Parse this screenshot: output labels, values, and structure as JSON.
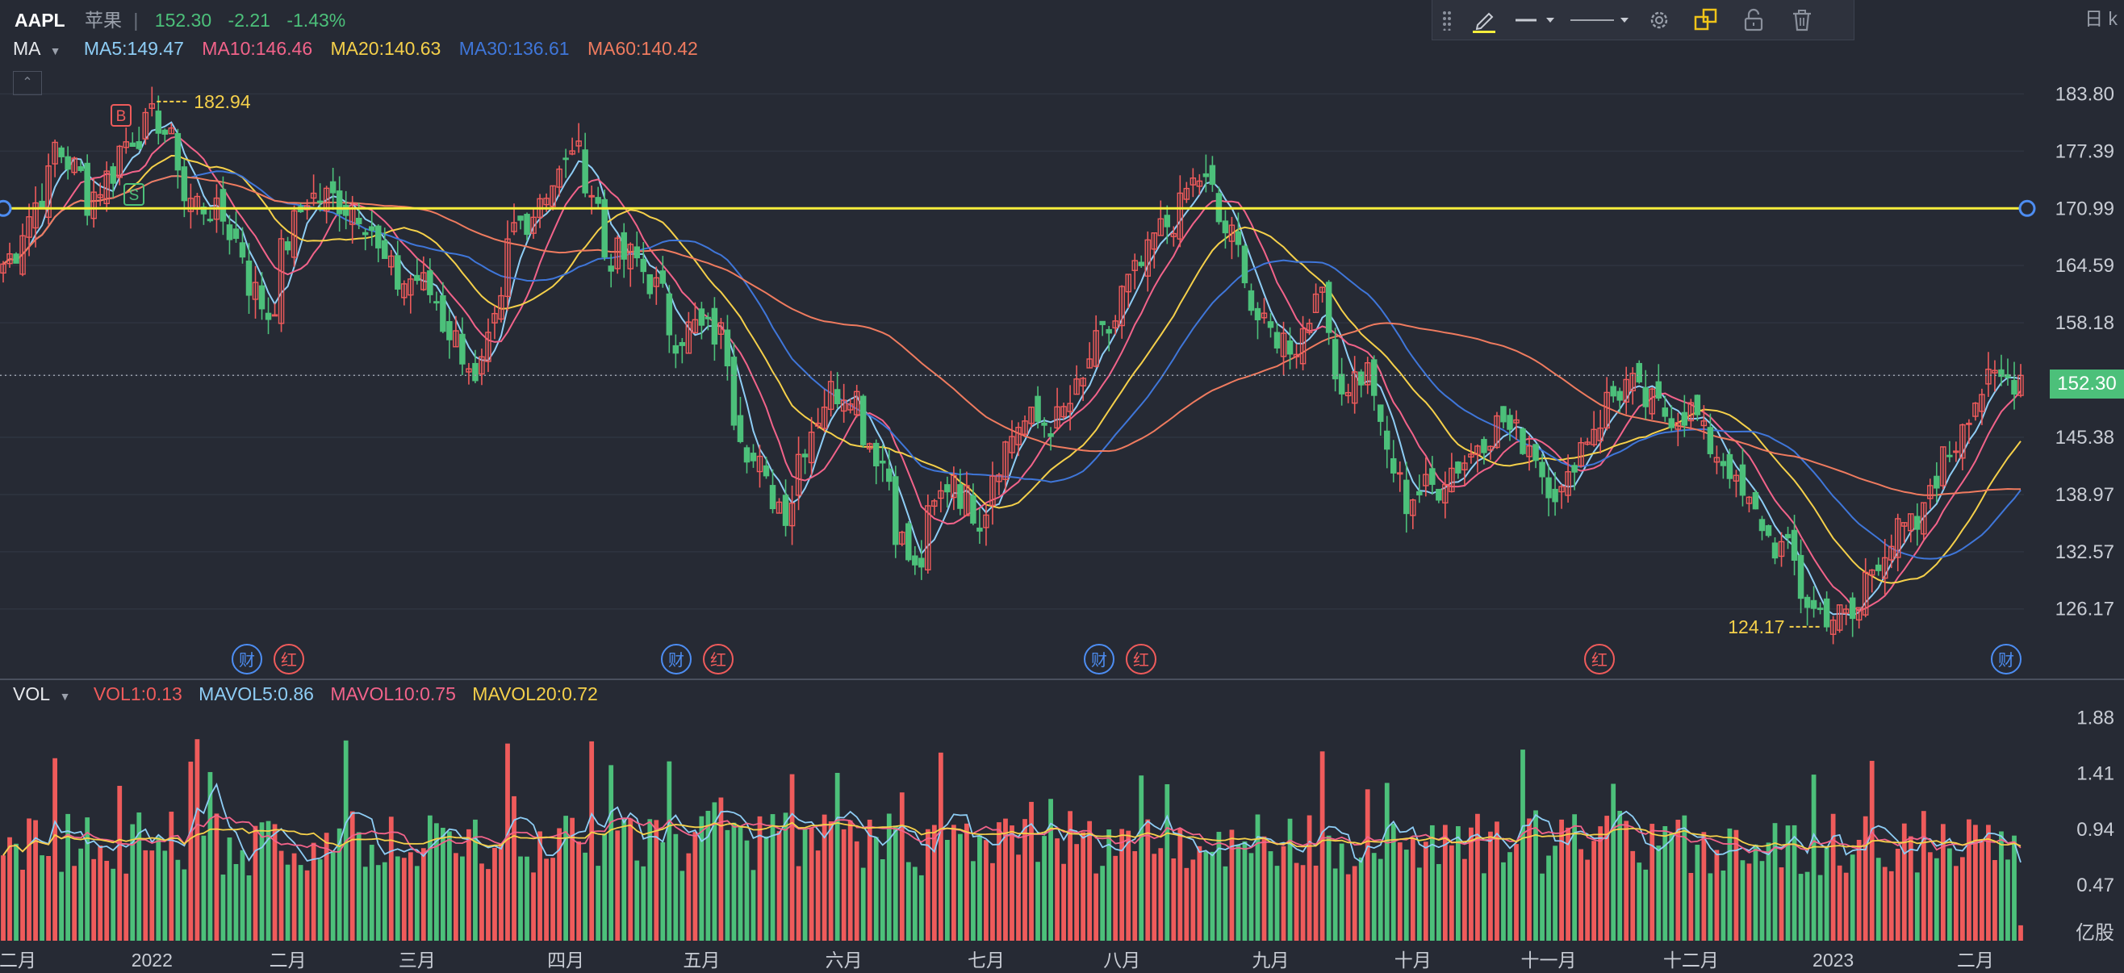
{
  "header": {
    "symbol": "AAPL",
    "name": "苹果",
    "separator": "|",
    "price": "152.30",
    "change": "-2.21",
    "change_pct": "-1.43%",
    "period": "日 k",
    "price_tag": "152.30",
    "collapse_icon": "chevron-up-icon"
  },
  "ma_legend": {
    "label": "MA",
    "items": [
      {
        "text": "MA5:149.47",
        "color": "#8ecdf5"
      },
      {
        "text": "MA10:146.46",
        "color": "#f2638a"
      },
      {
        "text": "MA20:140.63",
        "color": "#f5d04a"
      },
      {
        "text": "MA30:136.61",
        "color": "#3f76d9"
      },
      {
        "text": "MA60:140.42",
        "color": "#ef7b5f"
      }
    ]
  },
  "vol_legend": {
    "label": "VOL",
    "items": [
      {
        "text": "VOL1:0.13",
        "color": "#ef5b5b"
      },
      {
        "text": "MAVOL5:0.86",
        "color": "#8ecdf5"
      },
      {
        "text": "MAVOL10:0.75",
        "color": "#f2638a"
      },
      {
        "text": "MAVOL20:0.72",
        "color": "#f5d04a"
      }
    ]
  },
  "toolbar": {
    "items": [
      "drag-handle-icon",
      "pencil-icon",
      "line-style-icon",
      "line-width-icon",
      "gear-icon",
      "layers-icon",
      "lock-icon",
      "trash-icon"
    ]
  },
  "colors": {
    "up": "#ef5b5b",
    "down": "#4cc07a",
    "background": "#262a34",
    "grid": "#2f3440",
    "hline": "#f6ee3c"
  },
  "chart_data": [
    {
      "type": "candlestick",
      "title": "AAPL",
      "y_ticks": [
        "183.80",
        "177.39",
        "170.99",
        "164.59",
        "158.18",
        "152.30",
        "145.38",
        "138.97",
        "132.57",
        "126.17"
      ],
      "ylim": [
        121.0,
        186.0
      ],
      "x_ticks": [
        "二月",
        "2022",
        "二月",
        "三月",
        "四月",
        "五月",
        "六月",
        "七月",
        "八月",
        "九月",
        "十月",
        "十一月",
        "十二月",
        "2023",
        "二月"
      ],
      "horizontal_line": 170.99,
      "current_price": 152.3,
      "annotations": {
        "high": "182.94",
        "low": "124.17",
        "buy_marker": "B",
        "sell_marker": "S",
        "event_markers": [
          {
            "month": "二月",
            "labels": [
              "财",
              "红"
            ]
          },
          {
            "month": "五月",
            "labels": [
              "财",
              "红"
            ]
          },
          {
            "month": "八月",
            "labels": [
              "财",
              "红"
            ]
          },
          {
            "month": "十一月",
            "labels": [
              "红"
            ]
          },
          {
            "month": "二月",
            "labels": [
              "财"
            ]
          }
        ]
      },
      "series": [
        {
          "name": "MA5",
          "value": 149.47
        },
        {
          "name": "MA10",
          "value": 146.46
        },
        {
          "name": "MA20",
          "value": 140.63
        },
        {
          "name": "MA30",
          "value": 136.61
        },
        {
          "name": "MA60",
          "value": 140.42
        }
      ],
      "close_keypoints": [
        [
          "2021-12-01",
          164.8
        ],
        [
          "2021-12-06",
          169.0
        ],
        [
          "2021-12-13",
          178.0
        ],
        [
          "2021-12-20",
          172.0
        ],
        [
          "2021-12-29",
          179.3
        ],
        [
          "2022-01-04",
          181.0
        ],
        [
          "2022-01-10",
          172.2
        ],
        [
          "2022-01-18",
          169.8
        ],
        [
          "2022-01-27",
          159.2
        ],
        [
          "2022-02-04",
          172.4
        ],
        [
          "2022-02-10",
          172.1
        ],
        [
          "2022-02-16",
          171.0
        ],
        [
          "2022-02-24",
          162.7
        ],
        [
          "2022-03-01",
          163.2
        ],
        [
          "2022-03-08",
          157.4
        ],
        [
          "2022-03-14",
          150.6
        ],
        [
          "2022-03-22",
          168.8
        ],
        [
          "2022-03-31",
          174.6
        ],
        [
          "2022-04-04",
          178.4
        ],
        [
          "2022-04-11",
          165.8
        ],
        [
          "2022-04-18",
          165.1
        ],
        [
          "2022-04-26",
          156.8
        ],
        [
          "2022-04-29",
          157.7
        ],
        [
          "2022-05-05",
          156.8
        ],
        [
          "2022-05-12",
          142.6
        ],
        [
          "2022-05-19",
          137.4
        ],
        [
          "2022-05-27",
          149.6
        ],
        [
          "2022-06-02",
          151.2
        ],
        [
          "2022-06-09",
          142.6
        ],
        [
          "2022-06-16",
          130.1
        ],
        [
          "2022-06-24",
          141.7
        ],
        [
          "2022-06-30",
          136.7
        ],
        [
          "2022-07-08",
          147.0
        ],
        [
          "2022-07-18",
          147.1
        ],
        [
          "2022-07-28",
          157.4
        ],
        [
          "2022-08-05",
          165.4
        ],
        [
          "2022-08-17",
          174.5
        ],
        [
          "2022-08-24",
          167.5
        ],
        [
          "2022-08-31",
          157.2
        ],
        [
          "2022-09-07",
          155.9
        ],
        [
          "2022-09-12",
          163.4
        ],
        [
          "2022-09-16",
          150.7
        ],
        [
          "2022-09-22",
          152.7
        ],
        [
          "2022-09-30",
          138.2
        ],
        [
          "2022-10-07",
          140.1
        ],
        [
          "2022-10-13",
          142.9
        ],
        [
          "2022-10-21",
          147.3
        ],
        [
          "2022-10-27",
          144.8
        ],
        [
          "2022-11-03",
          138.9
        ],
        [
          "2022-11-10",
          146.9
        ],
        [
          "2022-11-17",
          151.3
        ],
        [
          "2022-11-25",
          148.1
        ],
        [
          "2022-12-01",
          148.3
        ],
        [
          "2022-12-09",
          142.2
        ],
        [
          "2022-12-15",
          136.5
        ],
        [
          "2022-12-22",
          132.2
        ],
        [
          "2022-12-28",
          126.0
        ],
        [
          "2023-01-05",
          125.0
        ],
        [
          "2023-01-12",
          133.4
        ],
        [
          "2023-01-19",
          135.3
        ],
        [
          "2023-01-26",
          143.9
        ],
        [
          "2023-02-02",
          150.8
        ],
        [
          "2023-02-08",
          151.9
        ],
        [
          "2023-02-10",
          152.3
        ]
      ]
    },
    {
      "type": "bar",
      "title": "VOL",
      "y_ticks": [
        "1.88",
        "1.41",
        "0.94",
        "0.47"
      ],
      "unit": "亿股",
      "ylim": [
        0,
        2.0
      ],
      "series": [
        {
          "name": "VOL1",
          "value": 0.13
        },
        {
          "name": "MAVOL5",
          "value": 0.86
        },
        {
          "name": "MAVOL10",
          "value": 0.75
        },
        {
          "name": "MAVOL20",
          "value": 0.72
        }
      ]
    }
  ]
}
